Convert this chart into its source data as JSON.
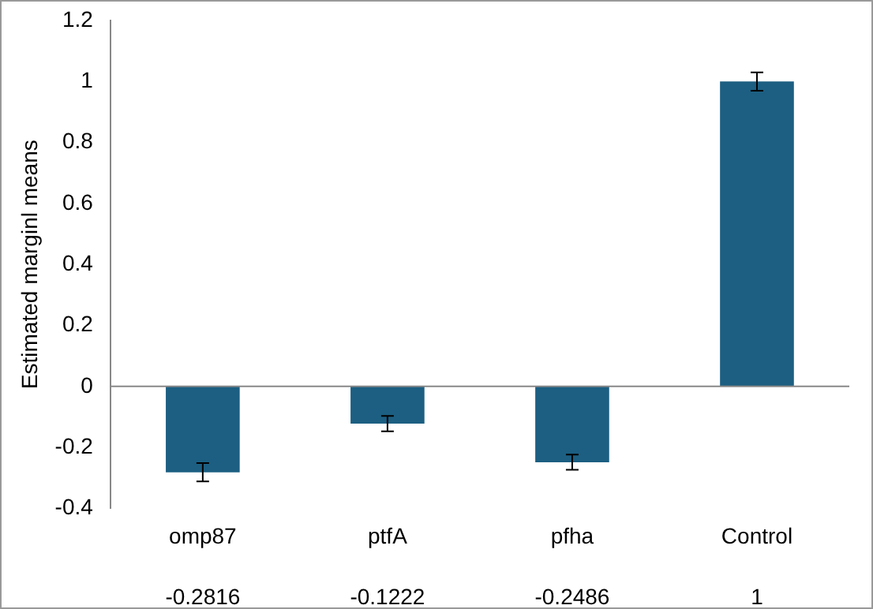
{
  "chart_data": {
    "type": "bar",
    "ylabel": "Estimated marginl means",
    "categories": [
      "omp87",
      "ptfA",
      "pfha",
      "Control"
    ],
    "values": [
      -0.2816,
      -0.1222,
      -0.2486,
      1
    ],
    "errors": [
      0.03,
      0.025,
      0.025,
      0.03
    ],
    "color": "#1c5f82",
    "ylim": [
      -0.4,
      1.2
    ],
    "yticks": [
      -0.4,
      -0.2,
      0,
      0.2,
      0.4,
      0.6,
      0.8,
      1,
      1.2
    ],
    "ref_lines": [
      {
        "axis": "y",
        "value": 0,
        "color": "#888888"
      }
    ],
    "data_labels": true,
    "legend": false,
    "grid": false
  }
}
